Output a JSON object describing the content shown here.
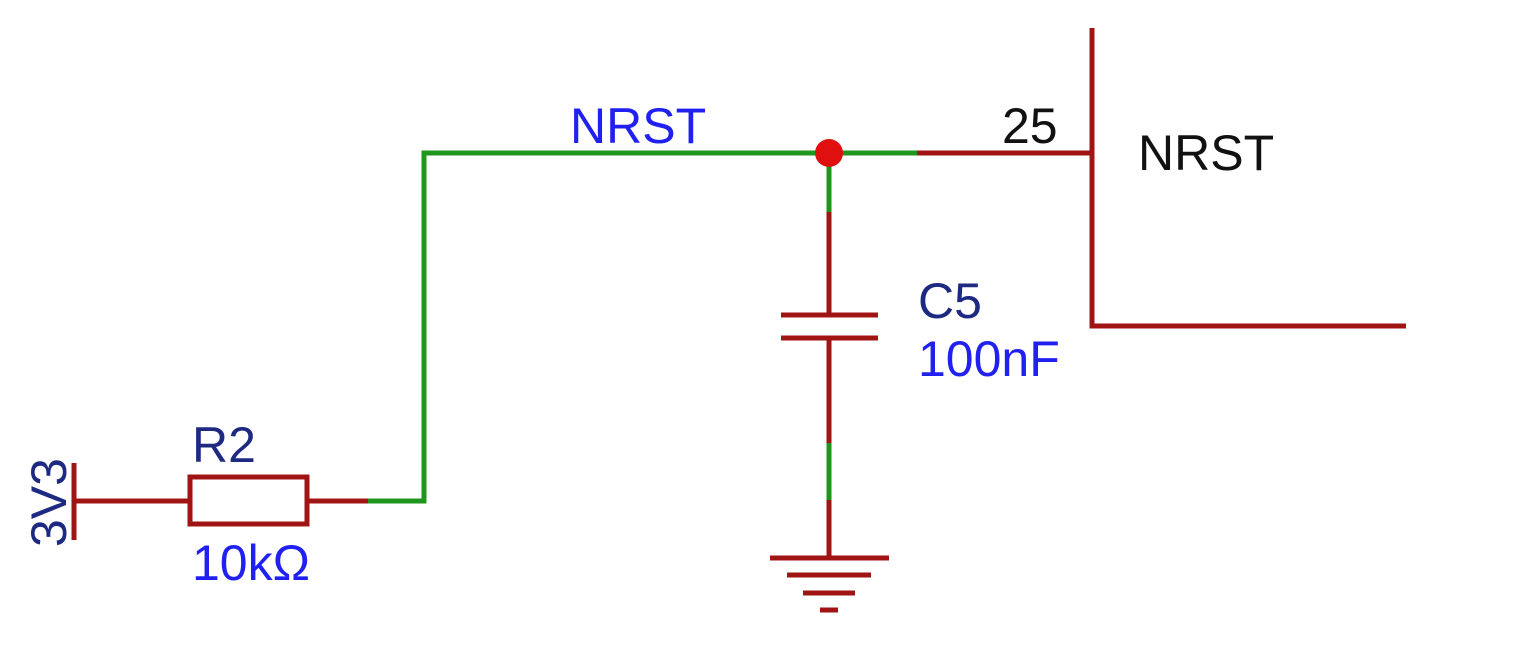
{
  "colors": {
    "wire": "#1e961e",
    "component": "#a01414",
    "junction": "#e01010",
    "designator": "#1e2a82",
    "value": "#2020f0",
    "net_label": "#2020f0",
    "pin_text": "#111111"
  },
  "power": {
    "net_name": "3V3"
  },
  "resistor": {
    "designator": "R2",
    "value": "10kΩ"
  },
  "capacitor": {
    "designator": "C5",
    "value": "100nF"
  },
  "net": {
    "label": "NRST"
  },
  "ic": {
    "pin_number": "25",
    "pin_name": "NRST"
  },
  "ground": {
    "symbol": "ground-icon"
  }
}
